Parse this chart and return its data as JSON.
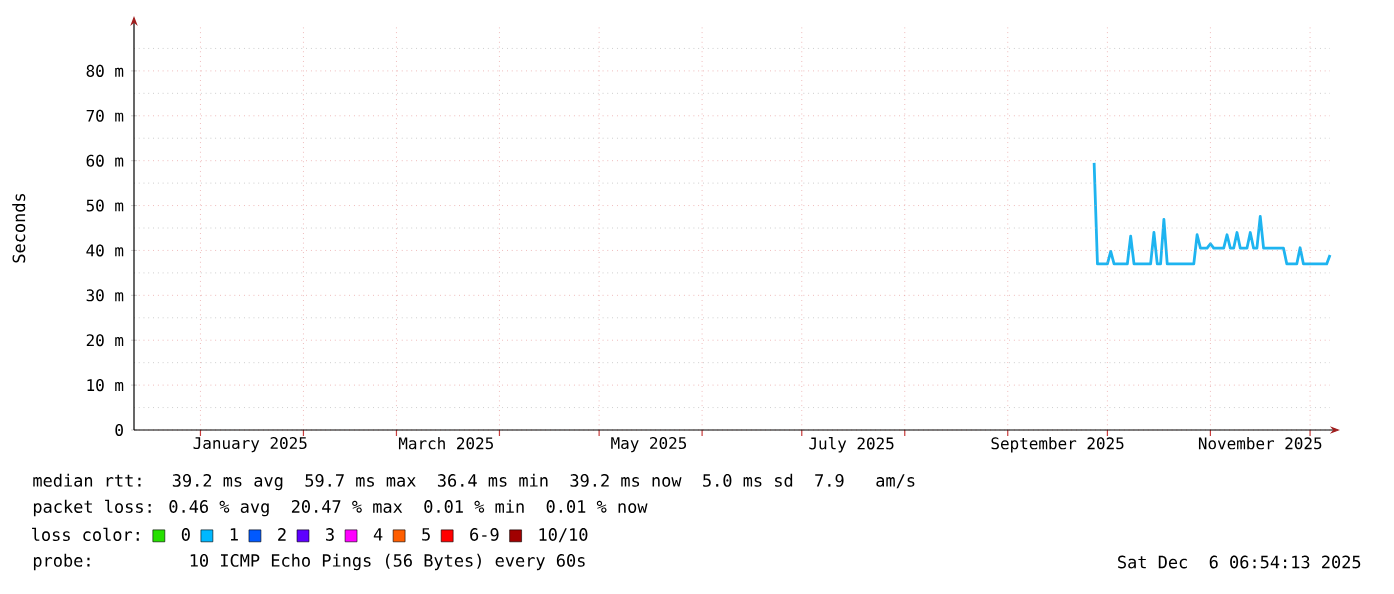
{
  "chart_data": {
    "type": "line",
    "ylabel": "Seconds",
    "x": [
      "2025-09-27",
      "2025-09-28",
      "2025-10-01",
      "2025-10-02",
      "2025-10-03",
      "2025-10-07",
      "2025-10-08",
      "2025-10-09",
      "2025-10-14",
      "2025-10-15",
      "2025-10-16",
      "2025-10-17",
      "2025-10-18",
      "2025-10-19",
      "2025-10-27",
      "2025-10-28",
      "2025-10-29",
      "2025-10-31",
      "2025-11-01",
      "2025-11-02",
      "2025-11-05",
      "2025-11-06",
      "2025-11-07",
      "2025-11-08",
      "2025-11-09",
      "2025-11-10",
      "2025-11-12",
      "2025-11-13",
      "2025-11-14",
      "2025-11-15",
      "2025-11-16",
      "2025-11-17",
      "2025-11-23",
      "2025-11-24",
      "2025-11-27",
      "2025-11-28",
      "2025-11-29",
      "2025-12-06",
      "2025-12-07"
    ],
    "series": [
      {
        "color": "#1eb4f0",
        "values": [
          59.5,
          37,
          37,
          39.8,
          37,
          37,
          43.2,
          37,
          37,
          44,
          37,
          37,
          46.9,
          37,
          37,
          43.5,
          40.5,
          40.5,
          41.5,
          40.5,
          40.5,
          43.5,
          40.5,
          40.5,
          44,
          40.5,
          40.5,
          44,
          40.5,
          40.5,
          47.6,
          40.5,
          40.5,
          37,
          37,
          40.6,
          37,
          37,
          39
        ]
      },
      {
        "name": "0",
        "color": "#26e000",
        "values": [
          null,
          null,
          null,
          null,
          null,
          null,
          null,
          null,
          null,
          null,
          null,
          null,
          null,
          null,
          null,
          null,
          null,
          null,
          null,
          null,
          null,
          null,
          null,
          null,
          null,
          null,
          null,
          null,
          null,
          null,
          null,
          null,
          null,
          null,
          null,
          null,
          null,
          null,
          null
        ]
      },
      {
        "name": "1",
        "color": "#00b8ff",
        "values": [
          null,
          null,
          null,
          null,
          null,
          null,
          null,
          null,
          null,
          null,
          null,
          null,
          null,
          null,
          null,
          null,
          null,
          null,
          null,
          null,
          null,
          null,
          null,
          null,
          null,
          null,
          null,
          null,
          null,
          null,
          null,
          null,
          null,
          null,
          null,
          null,
          null,
          null,
          null
        ]
      },
      {
        "name": "2",
        "color": "#0059ff",
        "values": [
          null,
          null,
          null,
          null,
          null,
          null,
          null,
          null,
          null,
          null,
          null,
          null,
          null,
          null,
          null,
          null,
          null,
          null,
          null,
          null,
          null,
          null,
          null,
          null,
          null,
          null,
          null,
          null,
          null,
          null,
          null,
          null,
          null,
          null,
          null,
          null,
          null,
          null,
          null
        ]
      },
      {
        "name": "3",
        "color": "#5e00ff",
        "values": [
          null,
          null,
          null,
          null,
          null,
          null,
          null,
          null,
          null,
          null,
          null,
          null,
          null,
          null,
          null,
          null,
          null,
          null,
          null,
          null,
          null,
          null,
          null,
          null,
          null,
          null,
          null,
          null,
          null,
          null,
          null,
          null,
          null,
          null,
          null,
          null,
          null,
          null,
          null
        ]
      },
      {
        "name": "4",
        "color": "#ff00ff",
        "values": [
          null,
          null,
          null,
          null,
          null,
          null,
          null,
          null,
          null,
          null,
          null,
          null,
          null,
          null,
          null,
          null,
          null,
          null,
          null,
          null,
          null,
          null,
          null,
          null,
          null,
          null,
          null,
          null,
          null,
          null,
          null,
          null,
          null,
          null,
          null,
          null,
          null,
          null,
          null
        ]
      },
      {
        "name": "5",
        "color": "#ff5e00",
        "values": [
          null,
          null,
          null,
          null,
          null,
          null,
          null,
          null,
          null,
          null,
          null,
          null,
          null,
          null,
          null,
          null,
          null,
          null,
          null,
          null,
          null,
          null,
          null,
          null,
          null,
          null,
          null,
          null,
          null,
          null,
          null,
          null,
          null,
          null,
          null,
          null,
          null,
          null,
          null
        ]
      },
      {
        "name": "6-9",
        "color": "#ff0000",
        "values": [
          null,
          null,
          null,
          null,
          null,
          null,
          null,
          null,
          null,
          null,
          null,
          null,
          null,
          null,
          null,
          null,
          null,
          null,
          null,
          null,
          null,
          null,
          null,
          null,
          null,
          null,
          null,
          null,
          null,
          null,
          null,
          null,
          null,
          null,
          null,
          null,
          null,
          null,
          null
        ]
      },
      {
        "name": "10/10",
        "color": "#a10000",
        "values": [
          null,
          null,
          null,
          null,
          null,
          null,
          null,
          null,
          null,
          null,
          null,
          null,
          null,
          null,
          null,
          null,
          null,
          null,
          null,
          null,
          null,
          null,
          null,
          null,
          null,
          null,
          null,
          null,
          null,
          null,
          null,
          null,
          null,
          null,
          null,
          null,
          null,
          null,
          null
        ]
      }
    ],
    "legend_title": "loss color:",
    "legend": "bottom",
    "xlim": [
      "2024-12-12",
      "2025-12-07"
    ],
    "xticks": [
      {
        "value": "2025-01-01",
        "label": null
      },
      {
        "value": "2025-01-16",
        "label": "January 2025"
      },
      {
        "value": "2025-02-01",
        "label": null
      },
      {
        "value": "2025-03-01",
        "label": null
      },
      {
        "value": "2025-03-16",
        "label": "March 2025"
      },
      {
        "value": "2025-04-01",
        "label": null
      },
      {
        "value": "2025-05-01",
        "label": null
      },
      {
        "value": "2025-05-16",
        "label": "May 2025"
      },
      {
        "value": "2025-06-01",
        "label": null
      },
      {
        "value": "2025-07-01",
        "label": null
      },
      {
        "value": "2025-07-16",
        "label": "July 2025"
      },
      {
        "value": "2025-08-01",
        "label": null
      },
      {
        "value": "2025-09-01",
        "label": null
      },
      {
        "value": "2025-09-16",
        "label": "September 2025"
      },
      {
        "value": "2025-10-01",
        "label": null
      },
      {
        "value": "2025-11-01",
        "label": null
      },
      {
        "value": "2025-11-16",
        "label": "November 2025"
      },
      {
        "value": "2025-12-01",
        "label": null
      }
    ],
    "ylim": [
      0,
      90
    ],
    "yticks": [
      {
        "value": 0,
        "label": "0"
      },
      {
        "value": 5,
        "label": null
      },
      {
        "value": 10,
        "label": "10 m"
      },
      {
        "value": 15,
        "label": null
      },
      {
        "value": 20,
        "label": "20 m"
      },
      {
        "value": 25,
        "label": null
      },
      {
        "value": 30,
        "label": "30 m"
      },
      {
        "value": 35,
        "label": null
      },
      {
        "value": 40,
        "label": "40 m"
      },
      {
        "value": 45,
        "label": null
      },
      {
        "value": 50,
        "label": "50 m"
      },
      {
        "value": 55,
        "label": null
      },
      {
        "value": 60,
        "label": "60 m"
      },
      {
        "value": 65,
        "label": null
      },
      {
        "value": 70,
        "label": "70 m"
      },
      {
        "value": 75,
        "label": null
      },
      {
        "value": 80,
        "label": "80 m"
      },
      {
        "value": 85,
        "label": null
      }
    ],
    "grid": true,
    "annotations": [
      "median rtt:  39.2 ms avg  59.7 ms max  36.4 ms min  39.2 ms now  5.0 ms sd  7.9   am/s",
      "packet loss: 0.46 % avg  20.47 % max  0.01 % min  0.01 % now",
      "probe:       10 ICMP Echo Pings (56 Bytes) every 60s",
      "Sat Dec  6 06:54:13 2025"
    ]
  }
}
